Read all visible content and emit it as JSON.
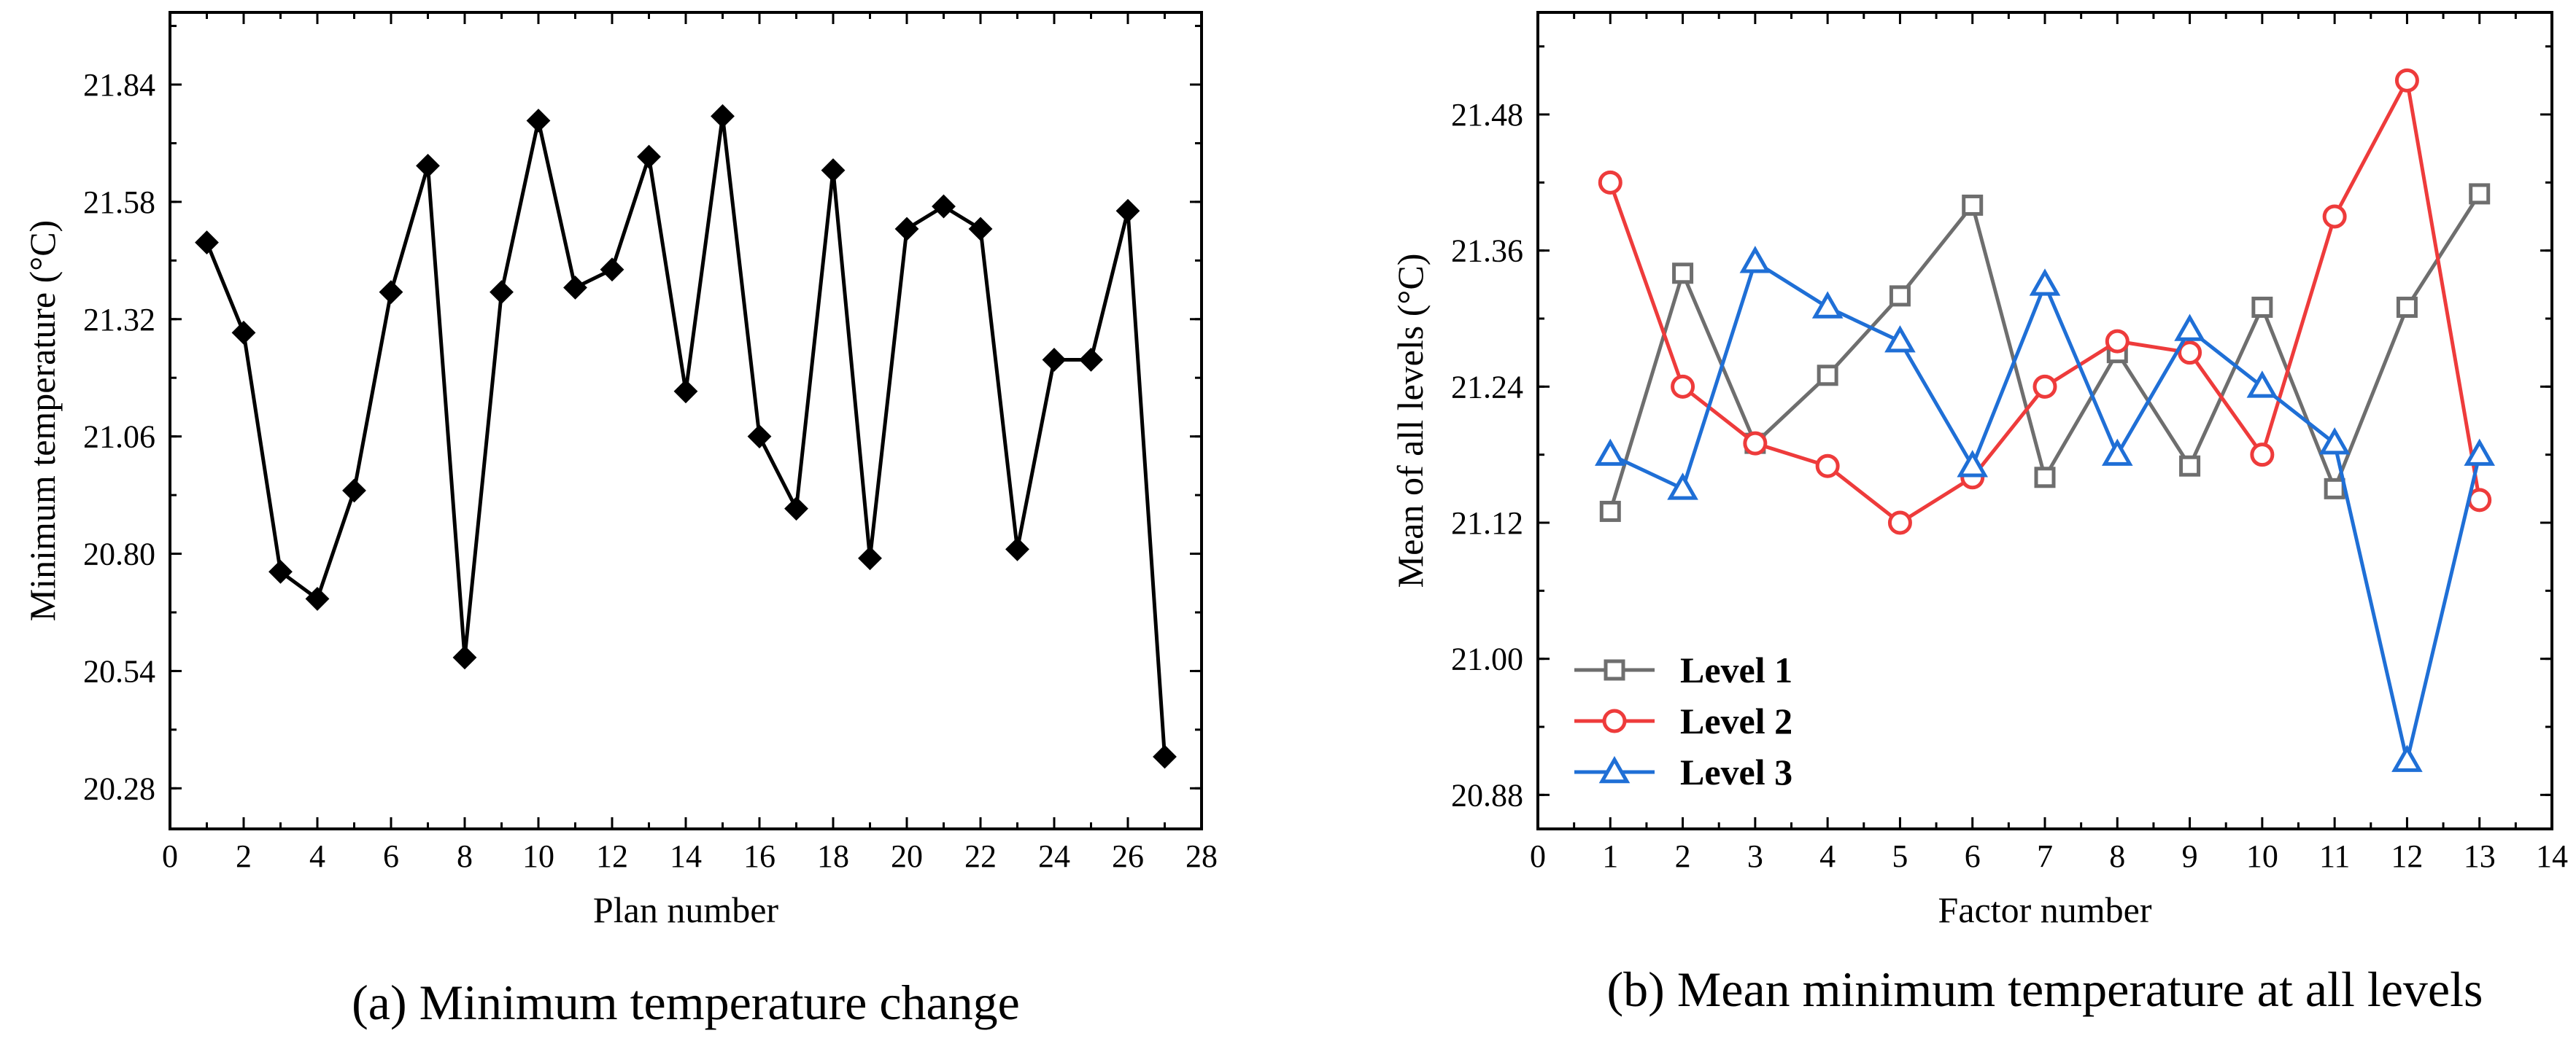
{
  "chart_data": [
    {
      "type": "line",
      "caption": "(a) Minimum temperature change",
      "xlabel": "Plan number",
      "ylabel": "Minimum temperature (°C)",
      "xlim": [
        0,
        28
      ],
      "ylim": [
        20.19,
        22.0
      ],
      "xticks": [
        0,
        2,
        4,
        6,
        8,
        10,
        12,
        14,
        16,
        18,
        20,
        22,
        24,
        26,
        28
      ],
      "yticks": [
        20.28,
        20.54,
        20.8,
        21.06,
        21.32,
        21.58,
        21.84
      ],
      "ytick_labels": [
        "20.28",
        "20.54",
        "20.80",
        "21.06",
        "21.32",
        "21.58",
        "21.84"
      ],
      "series": [
        {
          "name": "Minimum temperature",
          "color": "#000000",
          "marker": "diamond",
          "x": [
            1,
            2,
            3,
            4,
            5,
            6,
            7,
            8,
            9,
            10,
            11,
            12,
            13,
            14,
            15,
            16,
            17,
            18,
            19,
            20,
            21,
            22,
            23,
            24,
            25,
            26,
            27
          ],
          "values": [
            21.49,
            21.29,
            20.76,
            20.7,
            20.94,
            21.38,
            21.66,
            20.57,
            21.38,
            21.76,
            21.39,
            21.43,
            21.68,
            21.16,
            21.77,
            21.06,
            20.9,
            21.65,
            20.79,
            21.52,
            21.57,
            21.52,
            20.81,
            21.23,
            21.23,
            21.56,
            20.35
          ]
        }
      ]
    },
    {
      "type": "line",
      "caption": "(b) Mean minimum temperature at all levels",
      "xlabel": "Factor number",
      "ylabel": "Mean of all levels (°C)",
      "xlim": [
        0,
        14
      ],
      "ylim": [
        20.85,
        21.57
      ],
      "xticks": [
        0,
        1,
        2,
        3,
        4,
        5,
        6,
        7,
        8,
        9,
        10,
        11,
        12,
        13,
        14
      ],
      "yticks": [
        20.88,
        21.0,
        21.12,
        21.24,
        21.36,
        21.48
      ],
      "ytick_labels": [
        "20.88",
        "21.00",
        "21.12",
        "21.24",
        "21.36",
        "21.48"
      ],
      "legend_position": "bottom-left",
      "series": [
        {
          "name": "Level 1",
          "color": "#6e6e6e",
          "marker": "square",
          "x": [
            1,
            2,
            3,
            4,
            5,
            6,
            7,
            8,
            9,
            10,
            11,
            12,
            13
          ],
          "values": [
            21.13,
            21.34,
            21.19,
            21.25,
            21.32,
            21.4,
            21.16,
            21.27,
            21.17,
            21.31,
            21.15,
            21.31,
            21.41
          ]
        },
        {
          "name": "Level 2",
          "color": "#ee3b3b",
          "marker": "circle",
          "x": [
            1,
            2,
            3,
            4,
            5,
            6,
            7,
            8,
            9,
            10,
            11,
            12,
            13
          ],
          "values": [
            21.42,
            21.24,
            21.19,
            21.17,
            21.12,
            21.16,
            21.24,
            21.28,
            21.27,
            21.18,
            21.39,
            21.51,
            21.14
          ]
        },
        {
          "name": "Level 3",
          "color": "#1f6fd6",
          "marker": "triangle",
          "x": [
            1,
            2,
            3,
            4,
            5,
            6,
            7,
            8,
            9,
            10,
            11,
            12,
            13
          ],
          "values": [
            21.18,
            21.15,
            21.35,
            21.31,
            21.28,
            21.17,
            21.33,
            21.18,
            21.29,
            21.24,
            21.19,
            20.91,
            21.18
          ]
        }
      ]
    }
  ]
}
